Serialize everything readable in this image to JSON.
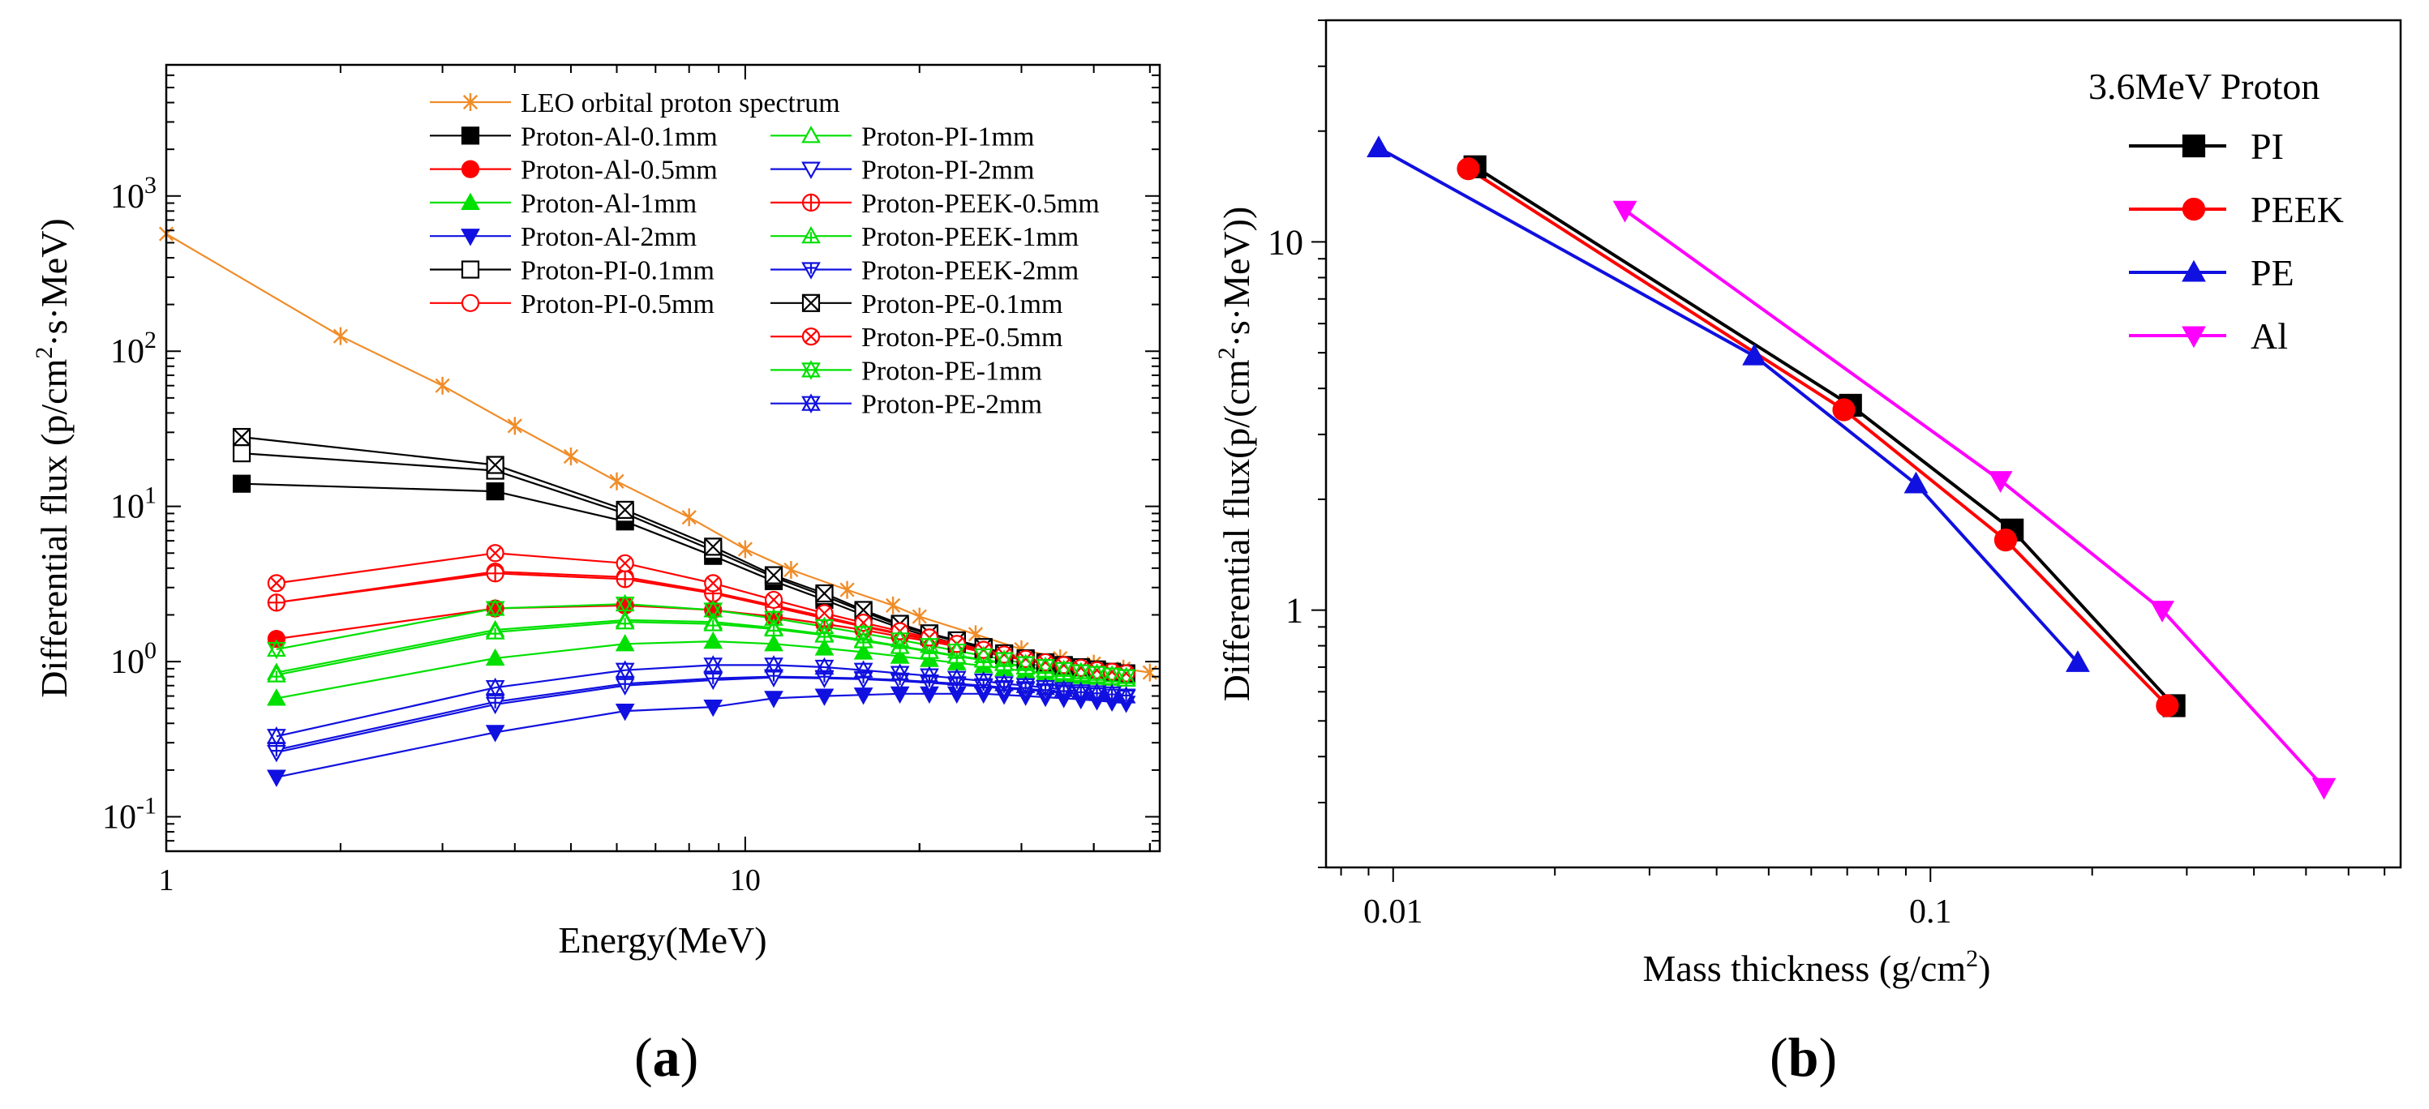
{
  "panels": {
    "a": {
      "prefix": "(",
      "letter": "a",
      "suffix": ")"
    },
    "b": {
      "prefix": "(",
      "letter": "b",
      "suffix": ")"
    }
  },
  "chart_data": [
    {
      "type": "line",
      "panel": "a",
      "xlabel": "Energy(MeV)",
      "ylabel": "Differential flux (p/cm2·s·MeV)",
      "xscale": "log",
      "yscale": "log",
      "xlim": [
        1,
        52
      ],
      "ylim": [
        0.06,
        7000
      ],
      "xticks": [
        {
          "v": 1,
          "label": "1"
        },
        {
          "v": 10,
          "label": "10"
        }
      ],
      "yticks": [
        {
          "v": 0.1,
          "base": "10",
          "exp": "-1"
        },
        {
          "v": 1,
          "base": "10",
          "exp": "0"
        },
        {
          "v": 10,
          "base": "10",
          "exp": "1"
        },
        {
          "v": 100,
          "base": "10",
          "exp": "2"
        },
        {
          "v": 1000,
          "base": "10",
          "exp": "3"
        }
      ],
      "legend_position": "top-right",
      "legend_layout": {
        "col1": 13,
        "col2_start": 1
      },
      "series": [
        {
          "name": "LEO orbital proton spectrum",
          "color": "#F08C28",
          "marker": "asterisk",
          "filled": false,
          "x": [
            1,
            2,
            3,
            4,
            5,
            6,
            8,
            10,
            12,
            15,
            18,
            20,
            25,
            30,
            35,
            40,
            45,
            50
          ],
          "y": [
            570,
            125,
            60,
            33,
            21,
            14.5,
            8.5,
            5.3,
            3.9,
            2.9,
            2.3,
            1.95,
            1.5,
            1.2,
            1.05,
            0.97,
            0.9,
            0.85
          ]
        },
        {
          "name": "Proton-Al-0.1mm",
          "color": "#000000",
          "marker": "square",
          "filled": true,
          "x": [
            1.35,
            3.7,
            6.2,
            8.8,
            11.2,
            13.7,
            16,
            18.5,
            20.8,
            23.2,
            25.8,
            28,
            30.5,
            33,
            35.5,
            38,
            40.5,
            43,
            45.5
          ],
          "y": [
            14,
            12.5,
            8,
            4.8,
            3.3,
            2.5,
            2,
            1.65,
            1.45,
            1.3,
            1.2,
            1.1,
            1.02,
            0.97,
            0.93,
            0.9,
            0.87,
            0.85,
            0.83
          ]
        },
        {
          "name": "Proton-Al-0.5mm",
          "color": "#FF0000",
          "marker": "circle",
          "filled": true,
          "x": [
            1.55,
            3.7,
            6.2,
            8.8,
            11.2,
            13.7,
            16,
            18.5,
            20.8,
            23.2,
            25.8,
            28,
            30.5,
            33,
            35.5,
            38,
            40.5,
            43,
            45.5
          ],
          "y": [
            1.4,
            2.2,
            2.3,
            2.15,
            1.95,
            1.75,
            1.6,
            1.45,
            1.35,
            1.25,
            1.15,
            1.08,
            1.02,
            0.97,
            0.93,
            0.9,
            0.87,
            0.85,
            0.83
          ]
        },
        {
          "name": "Proton-Al-1mm",
          "color": "#00E000",
          "marker": "triangle-up",
          "filled": true,
          "x": [
            1.55,
            3.7,
            6.2,
            8.8,
            11.2,
            13.7,
            16,
            18.5,
            20.8,
            23.2,
            25.8,
            28,
            30.5,
            33,
            35.5,
            38,
            40.5,
            43,
            45.5
          ],
          "y": [
            0.58,
            1.05,
            1.3,
            1.35,
            1.3,
            1.22,
            1.15,
            1.08,
            1.03,
            0.98,
            0.94,
            0.9,
            0.87,
            0.84,
            0.82,
            0.8,
            0.79,
            0.78,
            0.77
          ]
        },
        {
          "name": "Proton-Al-2mm",
          "color": "#1010E0",
          "marker": "triangle-down",
          "filled": true,
          "x": [
            1.55,
            3.7,
            6.2,
            8.8,
            11.2,
            13.7,
            16,
            18.5,
            20.8,
            23.2,
            25.8,
            28,
            30.5,
            33,
            35.5,
            38,
            40.5,
            43,
            45.5
          ],
          "y": [
            0.18,
            0.35,
            0.48,
            0.51,
            0.58,
            0.6,
            0.61,
            0.62,
            0.62,
            0.62,
            0.62,
            0.61,
            0.6,
            0.59,
            0.58,
            0.57,
            0.56,
            0.55,
            0.54
          ]
        },
        {
          "name": "Proton-PI-0.1mm",
          "color": "#000000",
          "marker": "square",
          "filled": false,
          "x": [
            1.35,
            3.7,
            6.2,
            8.8,
            11.2,
            13.7,
            16,
            18.5,
            20.8,
            23.2,
            25.8,
            28,
            30.5,
            33,
            35.5,
            38,
            40.5,
            43,
            45.5
          ],
          "y": [
            22,
            17,
            9,
            5.2,
            3.5,
            2.65,
            2.1,
            1.7,
            1.5,
            1.35,
            1.22,
            1.12,
            1.04,
            0.98,
            0.94,
            0.91,
            0.88,
            0.86,
            0.84
          ]
        },
        {
          "name": "Proton-PI-0.5mm",
          "color": "#FF0000",
          "marker": "circle",
          "filled": false,
          "x": [
            1.55,
            3.7,
            6.2,
            8.8,
            11.2,
            13.7,
            16,
            18.5,
            20.8,
            23.2,
            25.8,
            28,
            30.5,
            33,
            35.5,
            38,
            40.5,
            43,
            45.5
          ],
          "y": [
            2.4,
            3.8,
            3.5,
            2.8,
            2.3,
            1.95,
            1.7,
            1.52,
            1.4,
            1.28,
            1.18,
            1.1,
            1.03,
            0.98,
            0.94,
            0.9,
            0.88,
            0.85,
            0.83
          ]
        },
        {
          "name": "Proton-PI-1mm",
          "color": "#00E000",
          "marker": "triangle-up",
          "filled": false,
          "x": [
            1.55,
            3.7,
            6.2,
            8.8,
            11.2,
            13.7,
            16,
            18.5,
            20.8,
            23.2,
            25.8,
            28,
            30.5,
            33,
            35.5,
            38,
            40.5,
            43,
            45.5
          ],
          "y": [
            0.85,
            1.6,
            1.85,
            1.8,
            1.65,
            1.5,
            1.38,
            1.26,
            1.17,
            1.09,
            1.03,
            0.98,
            0.93,
            0.89,
            0.86,
            0.83,
            0.81,
            0.79,
            0.78
          ]
        },
        {
          "name": "Proton-PI-2mm",
          "color": "#1010E0",
          "marker": "triangle-down",
          "filled": false,
          "x": [
            1.55,
            3.7,
            6.2,
            8.8,
            11.2,
            13.7,
            16,
            18.5,
            20.8,
            23.2,
            25.8,
            28,
            30.5,
            33,
            35.5,
            38,
            40.5,
            43,
            45.5
          ],
          "y": [
            0.27,
            0.55,
            0.72,
            0.78,
            0.8,
            0.79,
            0.78,
            0.76,
            0.74,
            0.72,
            0.7,
            0.68,
            0.67,
            0.65,
            0.64,
            0.62,
            0.61,
            0.6,
            0.59
          ]
        },
        {
          "name": "Proton-PEEK-0.5mm",
          "color": "#FF0000",
          "marker": "circle-plus",
          "filled": false,
          "x": [
            1.55,
            3.7,
            6.2,
            8.8,
            11.2,
            13.7,
            16,
            18.5,
            20.8,
            23.2,
            25.8,
            28,
            30.5,
            33,
            35.5,
            38,
            40.5,
            43,
            45.5
          ],
          "y": [
            2.4,
            3.7,
            3.4,
            2.75,
            2.25,
            1.9,
            1.68,
            1.5,
            1.38,
            1.27,
            1.17,
            1.1,
            1.03,
            0.98,
            0.94,
            0.9,
            0.87,
            0.85,
            0.83
          ]
        },
        {
          "name": "Proton-PEEK-1mm",
          "color": "#00E000",
          "marker": "triangle-up-plus",
          "filled": false,
          "x": [
            1.55,
            3.7,
            6.2,
            8.8,
            11.2,
            13.7,
            16,
            18.5,
            20.8,
            23.2,
            25.8,
            28,
            30.5,
            33,
            35.5,
            38,
            40.5,
            43,
            45.5
          ],
          "y": [
            0.82,
            1.55,
            1.8,
            1.75,
            1.62,
            1.48,
            1.36,
            1.25,
            1.16,
            1.08,
            1.02,
            0.97,
            0.92,
            0.88,
            0.85,
            0.83,
            0.81,
            0.79,
            0.77
          ]
        },
        {
          "name": "Proton-PEEK-2mm",
          "color": "#1010E0",
          "marker": "triangle-down-plus",
          "filled": false,
          "x": [
            1.55,
            3.7,
            6.2,
            8.8,
            11.2,
            13.7,
            16,
            18.5,
            20.8,
            23.2,
            25.8,
            28,
            30.5,
            33,
            35.5,
            38,
            40.5,
            43,
            45.5
          ],
          "y": [
            0.26,
            0.53,
            0.7,
            0.76,
            0.79,
            0.78,
            0.77,
            0.75,
            0.73,
            0.71,
            0.69,
            0.67,
            0.66,
            0.64,
            0.63,
            0.62,
            0.61,
            0.6,
            0.59
          ]
        },
        {
          "name": "Proton-PE-0.1mm",
          "color": "#000000",
          "marker": "square-x",
          "filled": false,
          "x": [
            1.35,
            3.7,
            6.2,
            8.8,
            11.2,
            13.7,
            16,
            18.5,
            20.8,
            23.2,
            25.8,
            28,
            30.5,
            33,
            35.5,
            38,
            40.5,
            43,
            45.5
          ],
          "y": [
            28,
            18.5,
            9.5,
            5.5,
            3.6,
            2.75,
            2.15,
            1.75,
            1.52,
            1.37,
            1.24,
            1.13,
            1.05,
            0.99,
            0.95,
            0.92,
            0.89,
            0.86,
            0.84
          ]
        },
        {
          "name": "Proton-PE-0.5mm",
          "color": "#FF0000",
          "marker": "circle-x",
          "filled": false,
          "x": [
            1.55,
            3.7,
            6.2,
            8.8,
            11.2,
            13.7,
            16,
            18.5,
            20.8,
            23.2,
            25.8,
            28,
            30.5,
            33,
            35.5,
            38,
            40.5,
            43,
            45.5
          ],
          "y": [
            3.2,
            5,
            4.3,
            3.2,
            2.5,
            2.05,
            1.78,
            1.57,
            1.43,
            1.3,
            1.19,
            1.11,
            1.04,
            0.99,
            0.95,
            0.91,
            0.88,
            0.86,
            0.84
          ]
        },
        {
          "name": "Proton-PE-1mm",
          "color": "#00E000",
          "marker": "hourglass",
          "filled": false,
          "x": [
            1.55,
            3.7,
            6.2,
            8.8,
            11.2,
            13.7,
            16,
            18.5,
            20.8,
            23.2,
            25.8,
            28,
            30.5,
            33,
            35.5,
            38,
            40.5,
            43,
            45.5
          ],
          "y": [
            1.2,
            2.2,
            2.35,
            2.15,
            1.9,
            1.68,
            1.52,
            1.38,
            1.27,
            1.17,
            1.09,
            1.03,
            0.97,
            0.93,
            0.89,
            0.86,
            0.84,
            0.82,
            0.8
          ]
        },
        {
          "name": "Proton-PE-2mm",
          "color": "#1010E0",
          "marker": "hourglass",
          "filled": false,
          "x": [
            1.55,
            3.7,
            6.2,
            8.8,
            11.2,
            13.7,
            16,
            18.5,
            20.8,
            23.2,
            25.8,
            28,
            30.5,
            33,
            35.5,
            38,
            40.5,
            43,
            45.5
          ],
          "y": [
            0.33,
            0.68,
            0.88,
            0.95,
            0.95,
            0.92,
            0.88,
            0.84,
            0.81,
            0.78,
            0.75,
            0.72,
            0.7,
            0.68,
            0.66,
            0.64,
            0.63,
            0.62,
            0.6
          ]
        }
      ]
    },
    {
      "type": "line",
      "panel": "b",
      "xlabel": "Mass thickness (g/cm2)",
      "ylabel": "Differential flux(p/(cm2·s·MeV))",
      "xscale": "log",
      "yscale": "log",
      "xlim": [
        0.0075,
        0.75
      ],
      "ylim": [
        0.2,
        40
      ],
      "xticks": [
        {
          "v": 0.01,
          "label": "0.01"
        },
        {
          "v": 0.1,
          "label": "0.1"
        }
      ],
      "yticks": [
        {
          "v": 1,
          "label": "1"
        },
        {
          "v": 10,
          "label": "10"
        }
      ],
      "legend_title": "3.6MeV Proton",
      "legend_position": "top-right",
      "series": [
        {
          "name": "PI",
          "color": "#000000",
          "marker": "square",
          "filled": true,
          "x": [
            0.0142,
            0.071,
            0.142,
            0.284
          ],
          "y": [
            16,
            3.6,
            1.65,
            0.55
          ]
        },
        {
          "name": "PEEK",
          "color": "#FF0000",
          "marker": "circle",
          "filled": true,
          "x": [
            0.0138,
            0.069,
            0.138,
            0.276
          ],
          "y": [
            15.8,
            3.5,
            1.55,
            0.55
          ]
        },
        {
          "name": "PE",
          "color": "#1010E0",
          "marker": "triangle-up",
          "filled": true,
          "x": [
            0.0094,
            0.047,
            0.094,
            0.188
          ],
          "y": [
            18,
            4.9,
            2.2,
            0.72
          ]
        },
        {
          "name": "Al",
          "color": "#FF00FF",
          "marker": "triangle-down",
          "filled": true,
          "x": [
            0.027,
            0.135,
            0.27,
            0.54
          ],
          "y": [
            12.2,
            2.25,
            1.0,
            0.33
          ]
        }
      ]
    }
  ]
}
